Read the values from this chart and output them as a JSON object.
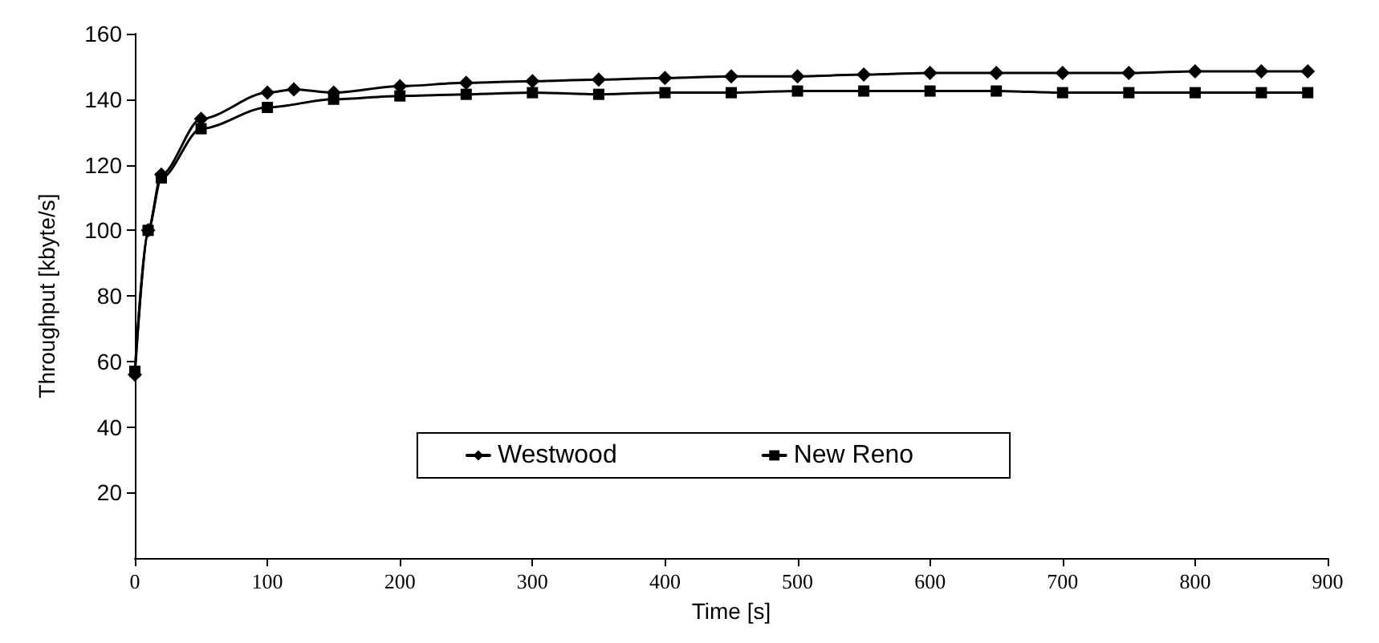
{
  "chart_data": {
    "type": "line",
    "xlabel": "Time [s]",
    "ylabel": "Throughput [kbyte/s]",
    "xlim": [
      0,
      900
    ],
    "xticks": [
      0,
      100,
      200,
      300,
      400,
      500,
      600,
      700,
      800,
      900
    ],
    "ylim": [
      0,
      160
    ],
    "yticks": [
      20,
      40,
      60,
      80,
      100,
      120,
      140,
      160
    ],
    "grid": false,
    "legend": "bottom",
    "line_style": "solid",
    "series": [
      {
        "name": "Westwood",
        "color": "#000000",
        "marker": "diamond",
        "x": [
          0,
          10,
          20,
          50,
          100,
          120,
          150,
          200,
          250,
          300,
          350,
          400,
          450,
          500,
          550,
          600,
          650,
          700,
          750,
          800,
          850,
          885
        ],
        "values": [
          56,
          100,
          117,
          134,
          142,
          143,
          142,
          144,
          145,
          145.5,
          146,
          146.5,
          147,
          147,
          147.5,
          148,
          148,
          148,
          148,
          148.5,
          148.5,
          148.5
        ]
      },
      {
        "name": "New Reno",
        "color": "#000000",
        "marker": "square",
        "x": [
          0,
          10,
          20,
          50,
          100,
          150,
          200,
          250,
          300,
          350,
          400,
          450,
          500,
          550,
          600,
          650,
          700,
          750,
          800,
          850,
          885
        ],
        "values": [
          57,
          100,
          116,
          131,
          137.5,
          140,
          141,
          141.5,
          142,
          141.5,
          142,
          142,
          142.5,
          142.5,
          142.5,
          142.5,
          142,
          142,
          142,
          142,
          142
        ]
      }
    ]
  }
}
